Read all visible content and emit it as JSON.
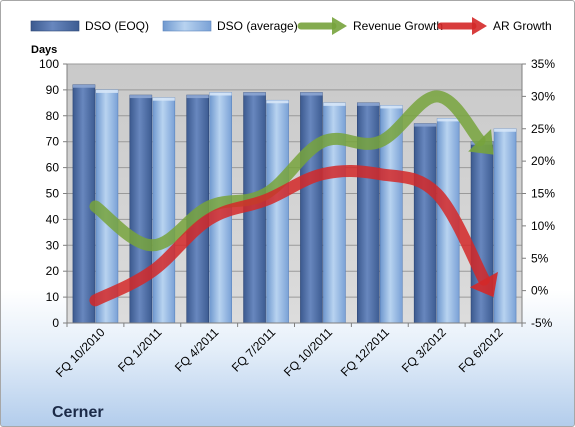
{
  "chart_data": {
    "type": "bar",
    "company": "Cerner",
    "y_axis_title": "Days",
    "categories": [
      "FQ 10/2010",
      "FQ 1/2011",
      "FQ 4/2011",
      "FQ 7/2011",
      "FQ 10/2011",
      "FQ 12/2011",
      "FQ 3/2012",
      "FQ 6/2012"
    ],
    "ylim": [
      0,
      100
    ],
    "y_ticks": [
      "0",
      "10",
      "20",
      "30",
      "40",
      "50",
      "60",
      "70",
      "80",
      "90",
      "100"
    ],
    "y2lim": [
      -5,
      35
    ],
    "y2_ticks": [
      "-5%",
      "0%",
      "5%",
      "10%",
      "15%",
      "20%",
      "25%",
      "30%",
      "35%"
    ],
    "grid": true,
    "legend_position": "top",
    "series": [
      {
        "name": "DSO (EOQ)",
        "kind": "bar",
        "axis": "left",
        "color": "#4f6fa6",
        "values": [
          92,
          88,
          88,
          89,
          89,
          85,
          77,
          70
        ]
      },
      {
        "name": "DSO (average)",
        "kind": "bar",
        "axis": "left",
        "color": "#8db3e2",
        "values": [
          90,
          87,
          89,
          86,
          85,
          84,
          79,
          75
        ]
      },
      {
        "name": "Revenue Growth",
        "kind": "arrow-line",
        "axis": "right",
        "color": "#77a33c",
        "values": [
          13,
          7,
          13,
          15,
          23,
          23,
          30,
          21
        ]
      },
      {
        "name": "AR Growth",
        "kind": "arrow-line",
        "axis": "right",
        "color": "#d42828",
        "values": [
          -1.5,
          3,
          11,
          14,
          18,
          18,
          15,
          -1
        ]
      }
    ]
  }
}
